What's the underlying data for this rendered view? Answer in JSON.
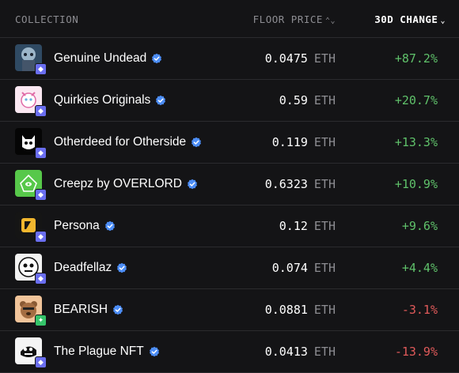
{
  "header": {
    "collection_label": "COLLECTION",
    "floor_price_label": "FLOOR PRICE",
    "change_label": "30D CHANGE"
  },
  "colors": {
    "positive": "#5fc16a",
    "negative": "#e05a5a",
    "verified": "#4c8df6",
    "background": "#141416"
  },
  "collections": [
    {
      "name": "Genuine Undead",
      "price": "0.0475",
      "currency": "ETH",
      "change": "+87.2%",
      "trend": "up",
      "chain": "ethereum",
      "icon": "genuine-undead-avatar"
    },
    {
      "name": "Quirkies Originals",
      "price": "0.59",
      "currency": "ETH",
      "change": "+20.7%",
      "trend": "up",
      "chain": "ethereum",
      "icon": "quirkies-avatar"
    },
    {
      "name": "Otherdeed for Otherside",
      "price": "0.119",
      "currency": "ETH",
      "change": "+13.3%",
      "trend": "up",
      "chain": "ethereum",
      "icon": "otherdeed-avatar"
    },
    {
      "name": "Creepz by OVERLORD",
      "price": "0.6323",
      "currency": "ETH",
      "change": "+10.9%",
      "trend": "up",
      "chain": "ethereum",
      "icon": "creepz-avatar"
    },
    {
      "name": "Persona",
      "price": "0.12",
      "currency": "ETH",
      "change": "+9.6%",
      "trend": "up",
      "chain": "ethereum",
      "icon": "persona-avatar"
    },
    {
      "name": "Deadfellaz",
      "price": "0.074",
      "currency": "ETH",
      "change": "+4.4%",
      "trend": "up",
      "chain": "ethereum",
      "icon": "deadfellaz-avatar"
    },
    {
      "name": "BEARISH",
      "price": "0.0881",
      "currency": "ETH",
      "change": "-3.1%",
      "trend": "down",
      "chain": "other",
      "icon": "bearish-avatar"
    },
    {
      "name": "The Plague NFT",
      "price": "0.0413",
      "currency": "ETH",
      "change": "-13.9%",
      "trend": "down",
      "chain": "ethereum",
      "icon": "plague-avatar"
    }
  ]
}
